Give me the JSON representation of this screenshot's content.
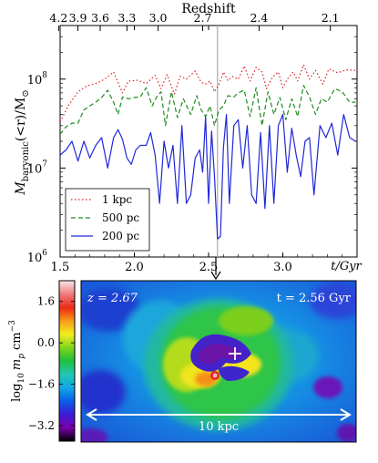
{
  "chart_data": [
    {
      "type": "line",
      "top_axis_title": "Redshift",
      "top_ticks": [
        4.2,
        3.9,
        3.6,
        3.3,
        3.0,
        2.7,
        2.4,
        2.1
      ],
      "top_tick_labels": [
        "4.2",
        "3.9",
        "3.6",
        "3.3",
        "3.0",
        "2.7",
        "2.4",
        "2.1"
      ],
      "top_tick_positions_gyr": [
        1.49,
        1.62,
        1.77,
        1.95,
        2.16,
        2.46,
        2.84,
        3.32
      ],
      "xlabel": "t/Gyr",
      "ylabel": "M_baryonic(<r)/M_⊙",
      "ylabel_main": "M",
      "ylabel_sub": "baryonic",
      "ylabel_rest": "(<r)/M",
      "ylabel_sun": "⊙",
      "xlim": [
        1.5,
        3.5
      ],
      "ylim": [
        1000000,
        400000000
      ],
      "yscale": "log",
      "x_ticks": [
        1.5,
        2.0,
        2.5,
        3.0
      ],
      "x_tick_labels": [
        "1.5",
        "2.0",
        "2.5",
        "3.0"
      ],
      "y_ticks": [
        1000000,
        10000000,
        100000000
      ],
      "y_tick_labels": [
        "10",
        "10",
        "10"
      ],
      "y_tick_exponents": [
        "6",
        "7",
        "8"
      ],
      "vline_gyr": 2.56,
      "legend_placement": "lower-left",
      "series": [
        {
          "name": "1 kpc",
          "color": "#d62020",
          "style": "dotted",
          "values": [
            [
              1.5,
              33000000
            ],
            [
              1.56,
              52000000
            ],
            [
              1.62,
              72000000
            ],
            [
              1.68,
              84000000
            ],
            [
              1.74,
              89000000
            ],
            [
              1.8,
              100000000
            ],
            [
              1.86,
              120000000
            ],
            [
              1.92,
              70000000
            ],
            [
              1.96,
              95000000
            ],
            [
              2.02,
              97000000
            ],
            [
              2.08,
              89000000
            ],
            [
              2.14,
              110000000
            ],
            [
              2.18,
              78000000
            ],
            [
              2.22,
              112000000
            ],
            [
              2.27,
              68000000
            ],
            [
              2.31,
              108000000
            ],
            [
              2.35,
              100000000
            ],
            [
              2.41,
              123000000
            ],
            [
              2.45,
              92000000
            ],
            [
              2.48,
              88000000
            ],
            [
              2.51,
              95000000
            ],
            [
              2.54,
              72000000
            ],
            [
              2.57,
              87000000
            ],
            [
              2.6,
              120000000
            ],
            [
              2.63,
              96000000
            ],
            [
              2.66,
              107000000
            ],
            [
              2.7,
              100000000
            ],
            [
              2.74,
              140000000
            ],
            [
              2.78,
              95000000
            ],
            [
              2.82,
              135000000
            ],
            [
              2.86,
              120000000
            ],
            [
              2.89,
              78000000
            ],
            [
              2.93,
              105000000
            ],
            [
              2.97,
              120000000
            ],
            [
              3.0,
              80000000
            ],
            [
              3.03,
              100000000
            ],
            [
              3.07,
              120000000
            ],
            [
              3.1,
              95000000
            ],
            [
              3.14,
              145000000
            ],
            [
              3.18,
              100000000
            ],
            [
              3.22,
              125000000
            ],
            [
              3.27,
              88000000
            ],
            [
              3.31,
              130000000
            ],
            [
              3.37,
              118000000
            ],
            [
              3.43,
              127000000
            ],
            [
              3.49,
              125000000
            ]
          ]
        },
        {
          "name": "500 pc",
          "color": "#208a20",
          "style": "dashed",
          "values": [
            [
              1.5,
              24000000
            ],
            [
              1.54,
              29000000
            ],
            [
              1.58,
              32000000
            ],
            [
              1.62,
              32000000
            ],
            [
              1.66,
              45000000
            ],
            [
              1.7,
              50000000
            ],
            [
              1.74,
              55000000
            ],
            [
              1.78,
              62000000
            ],
            [
              1.82,
              75000000
            ],
            [
              1.86,
              55000000
            ],
            [
              1.89,
              40000000
            ],
            [
              1.92,
              63000000
            ],
            [
              1.96,
              60000000
            ],
            [
              2.0,
              62000000
            ],
            [
              2.04,
              63000000
            ],
            [
              2.08,
              80000000
            ],
            [
              2.12,
              50000000
            ],
            [
              2.15,
              63000000
            ],
            [
              2.18,
              72000000
            ],
            [
              2.21,
              30000000
            ],
            [
              2.25,
              72000000
            ],
            [
              2.29,
              37000000
            ],
            [
              2.33,
              60000000
            ],
            [
              2.38,
              40000000
            ],
            [
              2.42,
              65000000
            ],
            [
              2.45,
              45000000
            ],
            [
              2.48,
              38000000
            ],
            [
              2.51,
              50000000
            ],
            [
              2.54,
              30000000
            ],
            [
              2.57,
              45000000
            ],
            [
              2.6,
              50000000
            ],
            [
              2.63,
              65000000
            ],
            [
              2.67,
              63000000
            ],
            [
              2.7,
              70000000
            ],
            [
              2.74,
              75000000
            ],
            [
              2.78,
              38000000
            ],
            [
              2.82,
              80000000
            ],
            [
              2.86,
              30000000
            ],
            [
              2.9,
              72000000
            ],
            [
              2.94,
              40000000
            ],
            [
              2.98,
              62000000
            ],
            [
              3.02,
              35000000
            ],
            [
              3.06,
              60000000
            ],
            [
              3.1,
              38000000
            ],
            [
              3.14,
              85000000
            ],
            [
              3.18,
              63000000
            ],
            [
              3.22,
              40000000
            ],
            [
              3.26,
              60000000
            ],
            [
              3.3,
              55000000
            ],
            [
              3.35,
              78000000
            ],
            [
              3.4,
              72000000
            ],
            [
              3.45,
              55000000
            ],
            [
              3.49,
              55000000
            ]
          ]
        },
        {
          "name": "200 pc",
          "color": "#1f28d8",
          "style": "solid",
          "values": [
            [
              1.5,
              14000000
            ],
            [
              1.54,
              16000000
            ],
            [
              1.58,
              20000000
            ],
            [
              1.62,
              12000000
            ],
            [
              1.66,
              20000000
            ],
            [
              1.7,
              13000000
            ],
            [
              1.74,
              18000000
            ],
            [
              1.78,
              22000000
            ],
            [
              1.82,
              10000000
            ],
            [
              1.86,
              22000000
            ],
            [
              1.89,
              27000000
            ],
            [
              1.92,
              21000000
            ],
            [
              1.95,
              13000000
            ],
            [
              1.98,
              11000000
            ],
            [
              2.01,
              16000000
            ],
            [
              2.04,
              18000000
            ],
            [
              2.08,
              18000000
            ],
            [
              2.11,
              25000000
            ],
            [
              2.14,
              14000000
            ],
            [
              2.17,
              4000000
            ],
            [
              2.2,
              20000000
            ],
            [
              2.23,
              10000000
            ],
            [
              2.26,
              18000000
            ],
            [
              2.29,
              4000000
            ],
            [
              2.32,
              30000000
            ],
            [
              2.35,
              4000000
            ],
            [
              2.38,
              5000000
            ],
            [
              2.41,
              13000000
            ],
            [
              2.44,
              16000000
            ],
            [
              2.46,
              9000000
            ],
            [
              2.48,
              38000000
            ],
            [
              2.5,
              4000000
            ],
            [
              2.52,
              26000000
            ],
            [
              2.54,
              8000000
            ],
            [
              2.56,
              1600000
            ],
            [
              2.58,
              1700000
            ],
            [
              2.6,
              17000000
            ],
            [
              2.62,
              40000000
            ],
            [
              2.64,
              4000000
            ],
            [
              2.67,
              30000000
            ],
            [
              2.7,
              35000000
            ],
            [
              2.73,
              10000000
            ],
            [
              2.76,
              30000000
            ],
            [
              2.79,
              5000000
            ],
            [
              2.82,
              4000000
            ],
            [
              2.85,
              25000000
            ],
            [
              2.88,
              3500000
            ],
            [
              2.91,
              30000000
            ],
            [
              2.94,
              4000000
            ],
            [
              2.97,
              30000000
            ],
            [
              3.0,
              40000000
            ],
            [
              3.03,
              9000000
            ],
            [
              3.06,
              28000000
            ],
            [
              3.09,
              14000000
            ],
            [
              3.12,
              8000000
            ],
            [
              3.15,
              20000000
            ],
            [
              3.18,
              22000000
            ],
            [
              3.21,
              5000000
            ],
            [
              3.25,
              30000000
            ],
            [
              3.29,
              22000000
            ],
            [
              3.33,
              32000000
            ],
            [
              3.37,
              14000000
            ],
            [
              3.41,
              40000000
            ],
            [
              3.45,
              22000000
            ],
            [
              3.49,
              20000000
            ]
          ]
        }
      ]
    },
    {
      "type": "heatmap",
      "colorbar_label": "log10 m_p cm^-3",
      "colorbar_label_parts": {
        "main": "log",
        "sub": "10",
        "var": "m",
        "var_sub": "p",
        "unit": "cm",
        "unit_sup": "−3"
      },
      "colorbar_range": [
        -3.8,
        2.4
      ],
      "colorbar_ticks": [
        1.6,
        0.0,
        -1.6,
        -3.2
      ],
      "colorbar_tick_labels": [
        "1.6",
        "0.0",
        "−1.6",
        "−3.2"
      ],
      "colormap_colors": [
        "#000000",
        "#7a00a8",
        "#3d1bd6",
        "#0a5ee8",
        "#11a8e6",
        "#20c7b0",
        "#1fbf3f",
        "#7fd51b",
        "#f2ee1e",
        "#f79b1a",
        "#ec2a13",
        "#ee7d7f",
        "#fbe6e6"
      ],
      "redshift_text": "z = 2.67",
      "time_text": "t = 2.56 Gyr",
      "scale_text": "10 kpc"
    }
  ]
}
